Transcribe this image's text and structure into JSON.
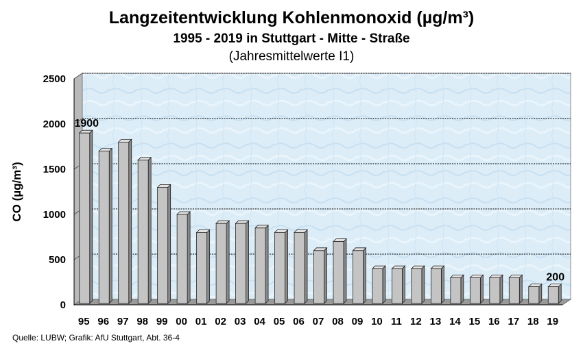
{
  "chart_data": {
    "type": "bar",
    "title": "Langzeitentwicklung Kohlenmonoxid (µg/m³)",
    "subtitle": "1995 - 2019 in Stuttgart - Mitte - Straße",
    "subtitle2": "(Jahresmittelwerte I1)",
    "ylabel": "CO (µg/m³)",
    "xlabel": "",
    "categories": [
      "95",
      "96",
      "97",
      "98",
      "99",
      "00",
      "01",
      "02",
      "03",
      "04",
      "05",
      "06",
      "07",
      "08",
      "09",
      "10",
      "11",
      "12",
      "13",
      "14",
      "15",
      "16",
      "17",
      "18",
      "19"
    ],
    "values": [
      1900,
      1700,
      1800,
      1600,
      1300,
      1000,
      800,
      900,
      900,
      850,
      800,
      800,
      600,
      700,
      600,
      400,
      400,
      400,
      400,
      300,
      300,
      300,
      300,
      200,
      200
    ],
    "ylim": [
      0,
      2500
    ],
    "yticks": [
      0,
      500,
      1000,
      1500,
      2000,
      2500
    ],
    "grid": true,
    "data_labels": [
      {
        "index": 0,
        "text": "1900"
      },
      {
        "index": 24,
        "text": "200"
      }
    ],
    "colors": {
      "bar_front": "#c4c4c4",
      "bar_side": "#8a8a8a",
      "bar_top": "#e2e2e2",
      "plot_bg": "#dcedf8",
      "wall": "#b9b9b9",
      "floor": "#9a9a9a"
    }
  },
  "source": "Quelle: LUBW; Grafik: AfU Stuttgart, Abt. 36-4"
}
